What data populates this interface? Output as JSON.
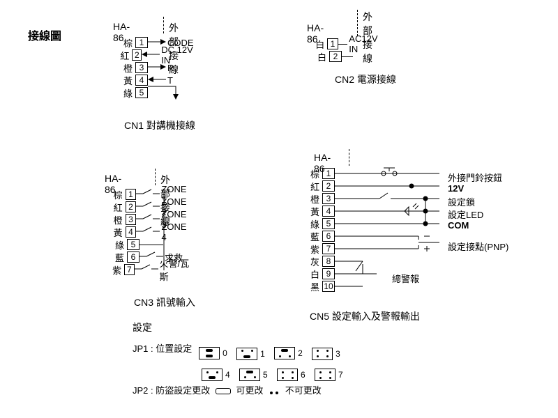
{
  "title": "接線圖",
  "cn1": {
    "ha": "HA-86",
    "ext": "外部接線",
    "label": "CN1  對講機接線",
    "pins": [
      {
        "n": "1",
        "color": "棕",
        "signal": "CODE",
        "arrow": "out"
      },
      {
        "n": "2",
        "color": "紅",
        "signal": "DC 12V IN",
        "arrow": "in"
      },
      {
        "n": "3",
        "color": "橙",
        "signal": "R",
        "arrow": "out"
      },
      {
        "n": "4",
        "color": "黃",
        "signal": "T",
        "arrow": "in"
      },
      {
        "n": "5",
        "color": "綠",
        "signal": "",
        "arrow": "gnd"
      }
    ]
  },
  "cn2": {
    "ha": "HA-86",
    "ext": "外部接線",
    "label": "CN2  電源接線",
    "pins": [
      {
        "n": "1",
        "color": "白",
        "signal": "AC12V IN"
      },
      {
        "n": "2",
        "color": "白",
        "signal": ""
      }
    ]
  },
  "cn3": {
    "ha": "HA-86",
    "ext": "外部接線",
    "label": "CN3  訊號輸入",
    "pins": [
      {
        "n": "1",
        "color": "棕",
        "signal": "ZONE 1",
        "sw": true
      },
      {
        "n": "2",
        "color": "紅",
        "signal": "ZONE 2",
        "sw": true
      },
      {
        "n": "3",
        "color": "橙",
        "signal": "ZONE 3",
        "sw": true
      },
      {
        "n": "4",
        "color": "黃",
        "signal": "ZONE 4",
        "sw": true
      },
      {
        "n": "5",
        "color": "綠",
        "signal": "",
        "sw": false
      },
      {
        "n": "6",
        "color": "藍",
        "signal": "求救",
        "sw": true
      },
      {
        "n": "7",
        "color": "紫",
        "signal": "火警/瓦斯",
        "sw": true
      }
    ]
  },
  "cn5": {
    "ha": "HA-86",
    "label": "CN5  設定輸入及警報輸出",
    "pins": [
      {
        "n": "1",
        "color": "棕"
      },
      {
        "n": "2",
        "color": "紅"
      },
      {
        "n": "3",
        "color": "橙"
      },
      {
        "n": "4",
        "color": "黃"
      },
      {
        "n": "5",
        "color": "綠"
      },
      {
        "n": "6",
        "color": "藍"
      },
      {
        "n": "7",
        "color": "紫"
      },
      {
        "n": "8",
        "color": "灰"
      },
      {
        "n": "9",
        "color": "白"
      },
      {
        "n": "10",
        "color": "黑"
      }
    ],
    "notes": {
      "doorbell": "外接門鈴按鈕",
      "v12": "12V",
      "lock": "設定鎖",
      "led": "設定LED",
      "com": "COM",
      "pnp": "設定接點(PNP)",
      "alarm": "總警報"
    }
  },
  "settings_label": "設定",
  "jp1": {
    "label": "JP1 : 位置設定",
    "items": [
      {
        "num": "0",
        "top": "bar",
        "bot": "bar"
      },
      {
        "num": "1",
        "top": "dots",
        "bot": "bar"
      },
      {
        "num": "2",
        "top": "bar",
        "bot": "dots"
      },
      {
        "num": "3",
        "top": "dots",
        "bot": "dots"
      },
      {
        "num": "4",
        "top": "dots",
        "bot": "bar"
      },
      {
        "num": "5",
        "top": "bar",
        "bot": "dots"
      },
      {
        "num": "6",
        "top": "dots",
        "bot": "dots"
      },
      {
        "num": "7",
        "top": "dots",
        "bot": "dots"
      }
    ]
  },
  "jp2": {
    "label": "JP2 : 防盜設定更改",
    "opt1": "可更改",
    "opt2": "不可更改"
  }
}
